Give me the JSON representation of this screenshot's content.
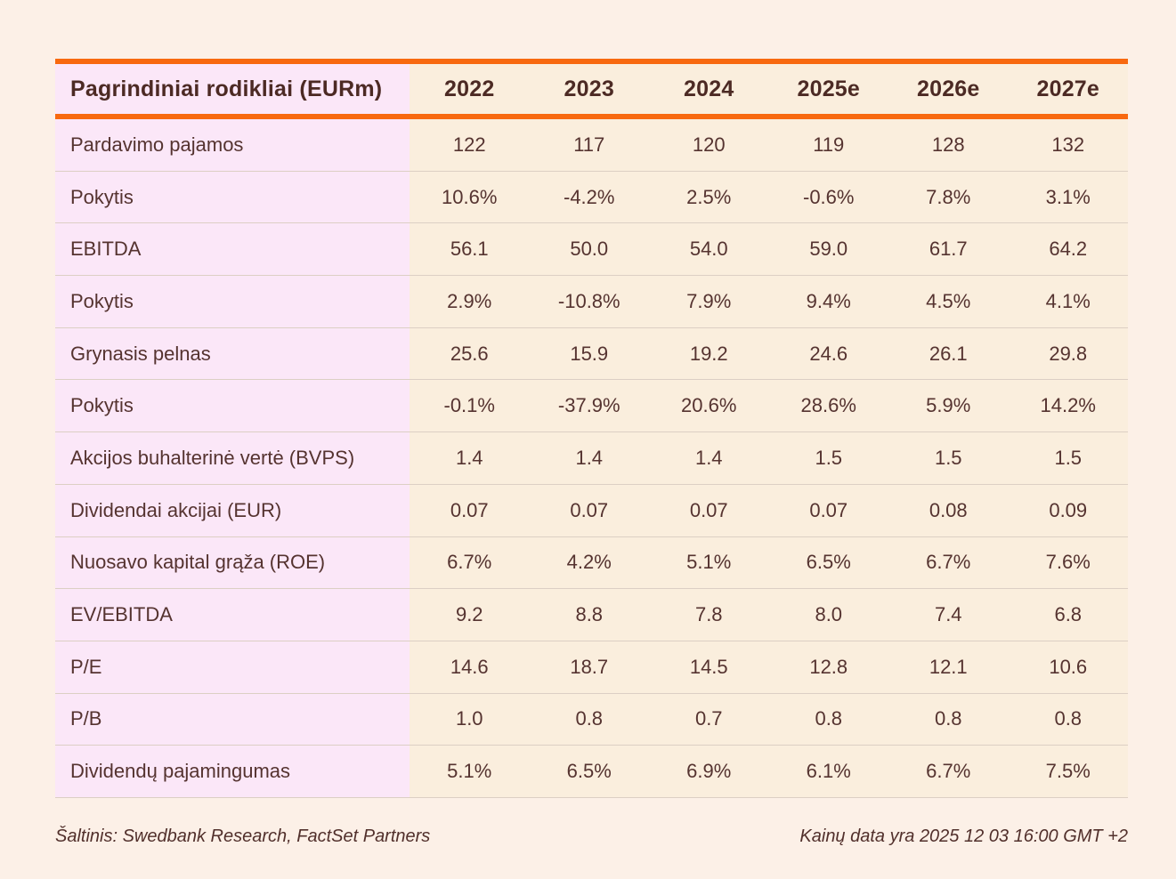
{
  "table": {
    "header": {
      "label": "Pagrindiniai rodikliai (EURm)",
      "columns": [
        "2022",
        "2023",
        "2024",
        "2025e",
        "2026e",
        "2027e"
      ]
    },
    "rows": [
      {
        "label": "Pardavimo pajamos",
        "values": [
          "122",
          "117",
          "120",
          "119",
          "128",
          "132"
        ]
      },
      {
        "label": "Pokytis",
        "values": [
          "10.6%",
          "-4.2%",
          "2.5%",
          "-0.6%",
          "7.8%",
          "3.1%"
        ]
      },
      {
        "label": "EBITDA",
        "values": [
          "56.1",
          "50.0",
          "54.0",
          "59.0",
          "61.7",
          "64.2"
        ]
      },
      {
        "label": "Pokytis",
        "values": [
          "2.9%",
          "-10.8%",
          "7.9%",
          "9.4%",
          "4.5%",
          "4.1%"
        ]
      },
      {
        "label": "Grynasis pelnas",
        "values": [
          "25.6",
          "15.9",
          "19.2",
          "24.6",
          "26.1",
          "29.8"
        ]
      },
      {
        "label": "Pokytis",
        "values": [
          "-0.1%",
          "-37.9%",
          "20.6%",
          "28.6%",
          "5.9%",
          "14.2%"
        ]
      },
      {
        "label": "Akcijos buhalterinė vertė (BVPS)",
        "values": [
          "1.4",
          "1.4",
          "1.4",
          "1.5",
          "1.5",
          "1.5"
        ]
      },
      {
        "label": "Dividendai akcijai (EUR)",
        "values": [
          "0.07",
          "0.07",
          "0.07",
          "0.07",
          "0.08",
          "0.09"
        ]
      },
      {
        "label": "Nuosavo kapital grąža (ROE)",
        "values": [
          "6.7%",
          "4.2%",
          "5.1%",
          "6.5%",
          "6.7%",
          "7.6%"
        ]
      },
      {
        "label": "EV/EBITDA",
        "values": [
          "9.2",
          "8.8",
          "7.8",
          "8.0",
          "7.4",
          "6.8"
        ]
      },
      {
        "label": "P/E",
        "values": [
          "14.6",
          "18.7",
          "14.5",
          "12.8",
          "12.1",
          "10.6"
        ]
      },
      {
        "label": "P/B",
        "values": [
          "1.0",
          "0.8",
          "0.7",
          "0.8",
          "0.8",
          "0.8"
        ]
      },
      {
        "label": "Dividendų pajamingumas",
        "values": [
          "5.1%",
          "6.5%",
          "6.9%",
          "6.1%",
          "6.7%",
          "7.5%"
        ]
      }
    ]
  },
  "footer": {
    "source": "Šaltinis: Swedbank Research, FactSet Partners",
    "price_date": "Kainų data yra 2025 12 03 16:00 GMT +2"
  },
  "colors": {
    "accent_orange": "#f8690f",
    "page_background": "#fcf0e7",
    "value_cell_background": "#faeedd",
    "label_cell_background": "#fbe7f8",
    "text": "#553330"
  }
}
